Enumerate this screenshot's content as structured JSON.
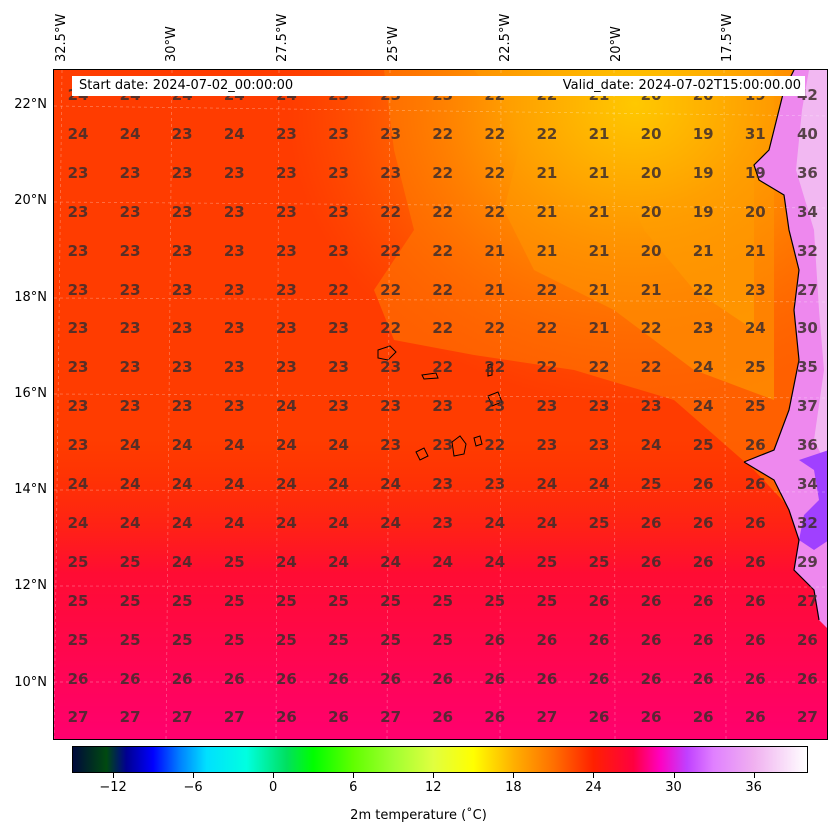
{
  "header": {
    "start_date": "Start date: 2024-07-02_00:00:00",
    "valid_date": "Valid_date: 2024-07-02T15:00:00.00"
  },
  "axes": {
    "lon_labels": [
      "32.5°W",
      "30°W",
      "27.5°W",
      "25°W",
      "22.5°W",
      "20°W",
      "17.5°W"
    ],
    "lat_labels": [
      "22°N",
      "20°N",
      "18°N",
      "16°N",
      "14°N",
      "12°N",
      "10°N"
    ]
  },
  "grid_values": [
    [
      "24",
      "24",
      "24",
      "24",
      "24",
      "23",
      "23",
      "23",
      "22",
      "22",
      "21",
      "20",
      "20",
      "19",
      "42"
    ],
    [
      "24",
      "24",
      "23",
      "24",
      "23",
      "23",
      "23",
      "22",
      "22",
      "22",
      "21",
      "20",
      "19",
      "31",
      "40"
    ],
    [
      "23",
      "23",
      "23",
      "23",
      "23",
      "23",
      "23",
      "22",
      "22",
      "21",
      "21",
      "20",
      "19",
      "19",
      "36"
    ],
    [
      "23",
      "23",
      "23",
      "23",
      "23",
      "23",
      "22",
      "22",
      "22",
      "21",
      "21",
      "20",
      "19",
      "20",
      "34"
    ],
    [
      "23",
      "23",
      "23",
      "23",
      "23",
      "23",
      "22",
      "22",
      "21",
      "21",
      "21",
      "20",
      "21",
      "21",
      "32"
    ],
    [
      "23",
      "23",
      "23",
      "23",
      "23",
      "22",
      "22",
      "22",
      "21",
      "22",
      "21",
      "21",
      "22",
      "23",
      "27"
    ],
    [
      "23",
      "23",
      "23",
      "23",
      "23",
      "23",
      "22",
      "22",
      "22",
      "22",
      "21",
      "22",
      "23",
      "24",
      "30"
    ],
    [
      "23",
      "23",
      "23",
      "23",
      "23",
      "23",
      "23",
      "22",
      "22",
      "22",
      "22",
      "22",
      "24",
      "25",
      "35"
    ],
    [
      "23",
      "23",
      "23",
      "23",
      "24",
      "23",
      "23",
      "23",
      "23",
      "23",
      "23",
      "23",
      "24",
      "25",
      "37"
    ],
    [
      "23",
      "24",
      "24",
      "24",
      "24",
      "24",
      "23",
      "23",
      "22",
      "23",
      "23",
      "24",
      "25",
      "26",
      "36"
    ],
    [
      "24",
      "24",
      "24",
      "24",
      "24",
      "24",
      "24",
      "23",
      "23",
      "24",
      "24",
      "25",
      "26",
      "26",
      "34"
    ],
    [
      "24",
      "24",
      "24",
      "24",
      "24",
      "24",
      "24",
      "23",
      "24",
      "24",
      "25",
      "26",
      "26",
      "26",
      "32"
    ],
    [
      "25",
      "25",
      "24",
      "25",
      "24",
      "24",
      "24",
      "24",
      "24",
      "25",
      "25",
      "26",
      "26",
      "26",
      "29"
    ],
    [
      "25",
      "25",
      "25",
      "25",
      "25",
      "25",
      "25",
      "25",
      "25",
      "25",
      "26",
      "26",
      "26",
      "26",
      "27"
    ],
    [
      "25",
      "25",
      "25",
      "25",
      "25",
      "25",
      "25",
      "25",
      "26",
      "26",
      "26",
      "26",
      "26",
      "26",
      "26"
    ],
    [
      "26",
      "26",
      "26",
      "26",
      "26",
      "26",
      "26",
      "26",
      "26",
      "26",
      "26",
      "26",
      "26",
      "26",
      "26"
    ],
    [
      "27",
      "27",
      "27",
      "27",
      "26",
      "26",
      "27",
      "26",
      "26",
      "27",
      "26",
      "26",
      "26",
      "26",
      "27"
    ]
  ],
  "colorbar": {
    "title": "2m temperature ($^\\circ$C)",
    "tick_labels": [
      "−12",
      "−6",
      "0",
      "6",
      "12",
      "18",
      "24",
      "30",
      "36"
    ],
    "tick_values": [
      -12,
      -6,
      0,
      6,
      12,
      18,
      24,
      30,
      36
    ],
    "min": -15,
    "max": 40
  }
}
